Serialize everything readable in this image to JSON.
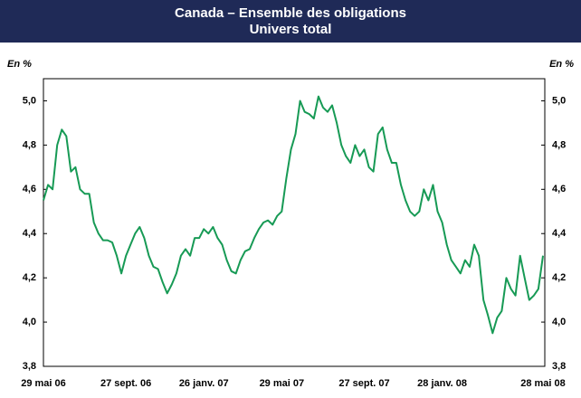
{
  "chart_data": {
    "type": "line",
    "title": "Canada – Ensemble des obligations",
    "subtitle": "Univers total",
    "y_label_left": "En %",
    "y_label_right": "En %",
    "categories": [
      "29 mai 06",
      null,
      null,
      null,
      null,
      null,
      null,
      null,
      null,
      null,
      null,
      null,
      null,
      null,
      null,
      null,
      null,
      null,
      "27 sept. 06",
      null,
      null,
      null,
      null,
      null,
      null,
      null,
      null,
      null,
      null,
      null,
      null,
      null,
      null,
      null,
      null,
      "26 janv. 07",
      null,
      null,
      null,
      null,
      null,
      null,
      null,
      null,
      null,
      null,
      null,
      null,
      null,
      null,
      null,
      null,
      "29 mai 07",
      null,
      null,
      null,
      null,
      null,
      null,
      null,
      null,
      null,
      null,
      null,
      null,
      null,
      null,
      null,
      null,
      null,
      "27 sept. 07",
      null,
      null,
      null,
      null,
      null,
      null,
      null,
      null,
      null,
      null,
      null,
      null,
      null,
      null,
      null,
      null,
      "28 janv. 08",
      null,
      null,
      null,
      null,
      null,
      null,
      null,
      null,
      null,
      null,
      null,
      null,
      null,
      null,
      null,
      null,
      null,
      null,
      null,
      null,
      null,
      "28 mai 08"
    ],
    "series": [
      {
        "color": "#179a55",
        "values": [
          4.55,
          4.62,
          4.6,
          4.8,
          4.87,
          4.84,
          4.68,
          4.7,
          4.6,
          4.58,
          4.58,
          4.45,
          4.4,
          4.37,
          4.37,
          4.36,
          4.3,
          4.22,
          4.3,
          4.35,
          4.4,
          4.43,
          4.38,
          4.3,
          4.25,
          4.24,
          4.18,
          4.13,
          4.17,
          4.22,
          4.3,
          4.33,
          4.3,
          4.38,
          4.38,
          4.42,
          4.4,
          4.43,
          4.38,
          4.35,
          4.28,
          4.23,
          4.22,
          4.28,
          4.32,
          4.33,
          4.38,
          4.42,
          4.45,
          4.46,
          4.44,
          4.48,
          4.5,
          4.65,
          4.78,
          4.85,
          5.0,
          4.95,
          4.94,
          4.92,
          5.02,
          4.97,
          4.95,
          4.98,
          4.9,
          4.8,
          4.75,
          4.72,
          4.8,
          4.75,
          4.78,
          4.7,
          4.68,
          4.85,
          4.88,
          4.78,
          4.72,
          4.72,
          4.62,
          4.55,
          4.5,
          4.48,
          4.5,
          4.6,
          4.55,
          4.62,
          4.5,
          4.45,
          4.35,
          4.28,
          4.25,
          4.22,
          4.28,
          4.25,
          4.35,
          4.3,
          4.1,
          4.03,
          3.95,
          4.02,
          4.05,
          4.2,
          4.15,
          4.12,
          4.3,
          4.2,
          4.1,
          4.12,
          4.15,
          4.3
        ]
      }
    ],
    "ylim": [
      3.8,
      5.1
    ],
    "yticks": [
      {
        "value": 3.8,
        "label": "3,8"
      },
      {
        "value": 4.0,
        "label": "4,0"
      },
      {
        "value": 4.2,
        "label": "4,2"
      },
      {
        "value": 4.4,
        "label": "4,4"
      },
      {
        "value": 4.6,
        "label": "4,6"
      },
      {
        "value": 4.8,
        "label": "4,8"
      },
      {
        "value": 5.0,
        "label": "5,0"
      }
    ],
    "grid": false,
    "title_background": "#1f2a57"
  }
}
